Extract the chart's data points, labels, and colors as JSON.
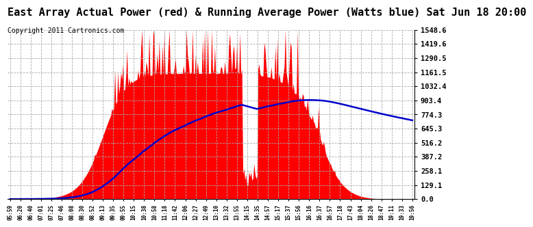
{
  "title": "East Array Actual Power (red) & Running Average Power (Watts blue) Sat Jun 18 20:00",
  "copyright": "Copyright 2011 Cartronics.com",
  "yticks": [
    0.0,
    129.1,
    258.1,
    387.2,
    516.2,
    645.3,
    774.3,
    903.4,
    1032.4,
    1161.5,
    1290.5,
    1419.6,
    1548.6
  ],
  "xtick_labels": [
    "05:59",
    "06:20",
    "06:40",
    "07:01",
    "07:25",
    "07:46",
    "08:08",
    "08:30",
    "08:52",
    "09:13",
    "09:35",
    "09:55",
    "10:15",
    "10:38",
    "10:58",
    "11:18",
    "11:42",
    "12:06",
    "12:27",
    "12:49",
    "13:10",
    "13:32",
    "13:55",
    "14:15",
    "14:35",
    "14:57",
    "15:17",
    "15:37",
    "15:56",
    "16:16",
    "16:37",
    "16:57",
    "17:18",
    "17:43",
    "18:04",
    "18:26",
    "18:47",
    "19:11",
    "19:33",
    "19:56"
  ],
  "ymax": 1548.6,
  "ymin": 0.0,
  "bg_color": "#ffffff",
  "grid_color": "#aaaaaa",
  "bar_color": "#ff0000",
  "line_color": "#0000cc",
  "title_fontsize": 11,
  "copyright_fontsize": 7,
  "n_points": 400
}
